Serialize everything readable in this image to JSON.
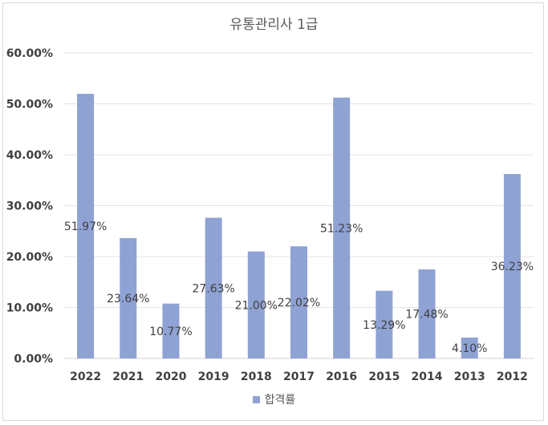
{
  "chart_data": {
    "type": "bar",
    "title": "유통관리사 1급",
    "categories": [
      "2022",
      "2021",
      "2020",
      "2019",
      "2018",
      "2017",
      "2016",
      "2015",
      "2014",
      "2013",
      "2012"
    ],
    "series": [
      {
        "name": "합격률",
        "values": [
          51.97,
          23.64,
          10.77,
          27.63,
          21.0,
          22.02,
          51.23,
          13.29,
          17.48,
          4.1,
          36.23
        ],
        "labels": [
          "51.97%",
          "23.64%",
          "10.77%",
          "27.63%",
          "21.00%",
          "22.02%",
          "51.23%",
          "13.29%",
          "17.48%",
          "4.10%",
          "36.23%"
        ]
      }
    ],
    "ylim": [
      0,
      60
    ],
    "yticks": [
      "0.00%",
      "10.00%",
      "20.00%",
      "30.00%",
      "40.00%",
      "50.00%",
      "60.00%"
    ],
    "grid": true,
    "legend_position": "bottom",
    "bar_color": "#8fa2d4"
  }
}
